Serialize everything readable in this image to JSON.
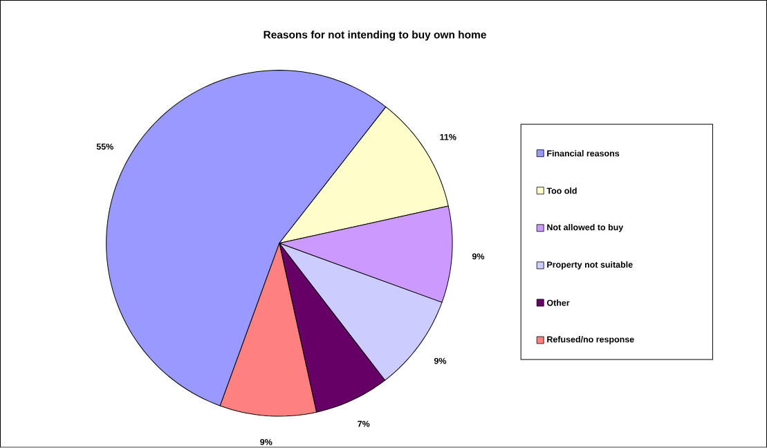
{
  "chart_data": {
    "type": "pie",
    "title": "Reasons for not intending to buy own home",
    "categories": [
      "Financial reasons",
      "Too old",
      "Not allowed to buy",
      "Property not suitable",
      "Other",
      "Refused/no response"
    ],
    "values": [
      55,
      11,
      9,
      9,
      7,
      9
    ],
    "colors": [
      "#9999ff",
      "#ffffcc",
      "#cc99ff",
      "#ccccff",
      "#660066",
      "#ff8080"
    ],
    "value_labels": [
      "55%",
      "11%",
      "9%",
      "9%",
      "7%",
      "9%"
    ],
    "legend": "right"
  }
}
